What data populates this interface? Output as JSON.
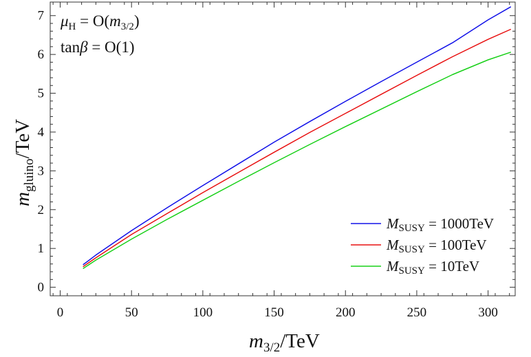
{
  "chart_data": {
    "type": "line",
    "title": "",
    "xlabel": {
      "symbol": "m",
      "subscript": "3/2",
      "unit": "/TeV"
    },
    "ylabel": {
      "symbol": "m",
      "subscript": "gluino",
      "unit": "/TeV"
    },
    "xlim": [
      -7,
      319
    ],
    "ylim": [
      -0.22,
      7.35
    ],
    "x_ticks": [
      0,
      50,
      100,
      150,
      200,
      250,
      300
    ],
    "x_tick_labels": [
      "0",
      "50",
      "100",
      "150",
      "200",
      "250",
      "300"
    ],
    "y_ticks": [
      0,
      1,
      2,
      3,
      4,
      5,
      6,
      7
    ],
    "y_tick_labels": [
      "0",
      "1",
      "2",
      "3",
      "4",
      "5",
      "6",
      "7"
    ],
    "annotations": [
      {
        "symbol": "μ",
        "subscript": "H",
        "text": " = O(",
        "symbol2": "m",
        "subscript2": "3/2",
        "close": ")"
      },
      {
        "text": "tan",
        "symbol": "β",
        "rest": " = O(1)"
      }
    ],
    "legend_position": "bottom-right",
    "series": [
      {
        "name": "MSUSY = 1000TeV",
        "legend": {
          "symbol": "M",
          "subscript": "SUSY",
          "text": " = 1000TeV"
        },
        "color": "#1010e8",
        "x": [
          16,
          25,
          50,
          75,
          100,
          125,
          150,
          175,
          200,
          225,
          250,
          275,
          300,
          316
        ],
        "y": [
          0.58,
          0.83,
          1.46,
          2.05,
          2.62,
          3.18,
          3.74,
          4.27,
          4.79,
          5.3,
          5.8,
          6.3,
          6.89,
          7.23
        ]
      },
      {
        "name": "MSUSY = 100TeV",
        "legend": {
          "symbol": "M",
          "subscript": "SUSY",
          "text": " = 100TeV"
        },
        "color": "#e81010",
        "x": [
          16,
          25,
          50,
          75,
          100,
          125,
          150,
          175,
          200,
          225,
          250,
          275,
          300,
          316
        ],
        "y": [
          0.53,
          0.76,
          1.36,
          1.9,
          2.44,
          2.96,
          3.48,
          3.99,
          4.48,
          4.97,
          5.46,
          5.94,
          6.39,
          6.65
        ]
      },
      {
        "name": "MSUSY = 10TeV",
        "legend": {
          "symbol": "M",
          "subscript": "SUSY",
          "text": " = 10TeV"
        },
        "color": "#18d018",
        "x": [
          16,
          25,
          50,
          75,
          100,
          125,
          150,
          175,
          200,
          225,
          250,
          275,
          300,
          316
        ],
        "y": [
          0.48,
          0.7,
          1.24,
          1.75,
          2.24,
          2.73,
          3.21,
          3.68,
          4.14,
          4.59,
          5.04,
          5.48,
          5.86,
          6.06
        ]
      }
    ]
  }
}
